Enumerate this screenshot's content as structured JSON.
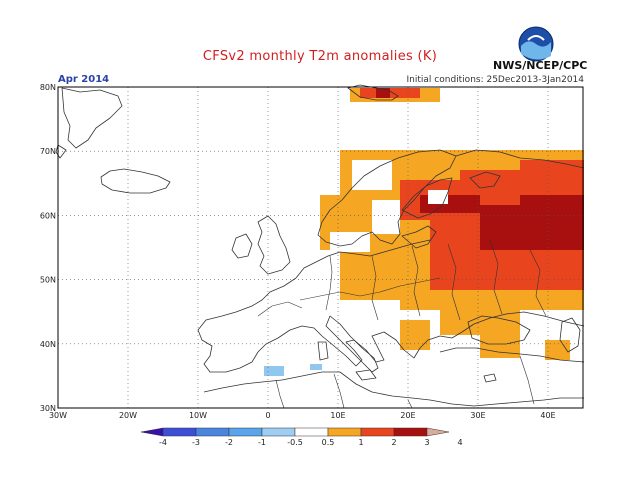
{
  "header": {
    "title": "CFSv2 monthly T2m anomalies (K)",
    "agency": "NWS/NCEP/CPC",
    "month": "Apr 2014",
    "initial_conditions": "Initial conditions: 25Dec2013-3Jan2014",
    "logo_text": "NOAA"
  },
  "map": {
    "lat_labels": [
      "30N",
      "40N",
      "50N",
      "60N",
      "70N",
      "80N"
    ],
    "lon_labels": [
      "30W",
      "20W",
      "10W",
      "0",
      "10E",
      "20E",
      "30E",
      "40E"
    ],
    "lat_values": [
      30,
      40,
      50,
      60,
      70,
      80
    ],
    "lon_values": [
      -30,
      -20,
      -10,
      0,
      10,
      20,
      30,
      40
    ],
    "extent": {
      "lon_min": -30,
      "lon_max": 45,
      "lat_min": 30,
      "lat_max": 80
    },
    "grid": "dotted",
    "colors": {
      "0.5-1": "#f5a623",
      "1-2": "#e8451e",
      "2-3": "#a80f0f",
      "-1--0.5": "#8fc7ef",
      "coast": "#333333"
    }
  },
  "colorbar": {
    "labels": [
      "-4",
      "-3",
      "-2",
      "-1",
      "-0.5",
      "0.5",
      "1",
      "2",
      "3",
      "4"
    ],
    "colors": [
      "#3a0fb0",
      "#3d4fd6",
      "#4a86e0",
      "#5aa4ec",
      "#9dcdf3",
      "#ffffff",
      "#f5a623",
      "#e8451e",
      "#a80f0f",
      "#deaa9c"
    ]
  }
}
